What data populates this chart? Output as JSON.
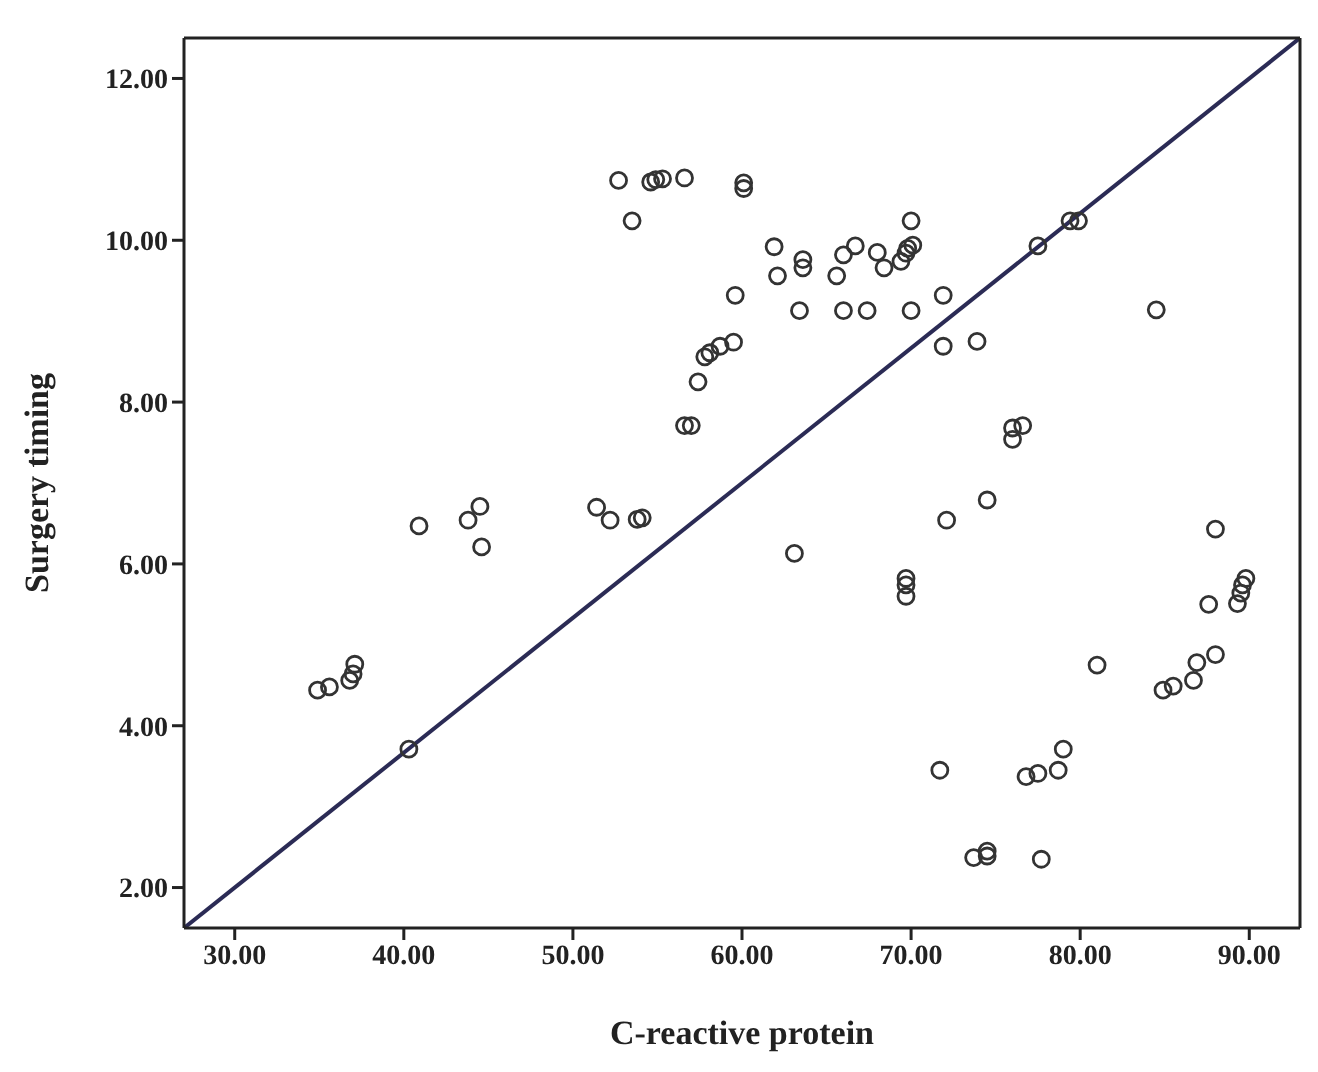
{
  "chart_data": {
    "type": "scatter",
    "xlabel": "C-reactive protein",
    "ylabel": "Surgery timing",
    "xlim": [
      27,
      93
    ],
    "ylim": [
      1.5,
      12.5
    ],
    "xticks": [
      {
        "value": 30,
        "label": "30.00"
      },
      {
        "value": 40,
        "label": "40.00"
      },
      {
        "value": 50,
        "label": "50.00"
      },
      {
        "value": 60,
        "label": "60.00"
      },
      {
        "value": 70,
        "label": "70.00"
      },
      {
        "value": 80,
        "label": "80.00"
      },
      {
        "value": 90,
        "label": "90.00"
      }
    ],
    "yticks": [
      {
        "value": 2,
        "label": "2.00"
      },
      {
        "value": 4,
        "label": "4.00"
      },
      {
        "value": 6,
        "label": "6.00"
      },
      {
        "value": 8,
        "label": "8.00"
      },
      {
        "value": 10,
        "label": "10.00"
      },
      {
        "value": 12,
        "label": "12.00"
      }
    ],
    "marker": "circle",
    "series": [
      {
        "color": "#333333",
        "x": [
          52.7,
          54.6,
          54.9,
          55.3,
          56.6,
          53.5,
          59.6,
          57.8,
          58.1,
          58.7,
          59.5,
          57.4,
          56.6,
          57.0,
          40.9,
          43.8,
          44.5,
          44.6,
          51.4,
          52.2,
          53.8,
          54.1,
          60.1,
          60.1,
          70.0,
          61.9,
          63.6,
          63.6,
          62.1,
          66.0,
          66.7,
          68.0,
          68.4,
          65.6,
          69.4,
          69.7,
          69.8,
          70.1,
          63.4,
          66.0,
          67.4,
          70.0,
          71.9,
          71.9,
          73.9,
          76.0,
          76.6,
          76.0,
          74.5,
          72.1,
          88.0,
          84.5,
          77.5,
          79.4,
          79.9,
          63.1,
          69.7,
          69.7,
          69.7,
          89.8,
          89.6,
          89.5,
          89.3,
          87.6,
          88.0,
          86.9,
          86.7,
          85.5,
          84.9,
          81.0,
          79.0,
          78.7,
          77.5,
          76.8,
          71.7,
          77.7,
          74.5,
          74.5,
          73.7,
          34.9,
          35.6,
          36.8,
          37.0,
          37.1,
          40.3
        ],
        "values": [
          10.74,
          10.72,
          10.75,
          10.76,
          10.77,
          10.24,
          9.32,
          8.56,
          8.61,
          8.69,
          8.74,
          8.25,
          7.71,
          7.71,
          6.47,
          6.54,
          6.71,
          6.21,
          6.7,
          6.54,
          6.55,
          6.57,
          10.71,
          10.64,
          10.24,
          9.92,
          9.76,
          9.66,
          9.56,
          9.82,
          9.93,
          9.85,
          9.66,
          9.56,
          9.74,
          9.84,
          9.9,
          9.94,
          9.13,
          9.13,
          9.13,
          9.13,
          9.32,
          8.69,
          8.75,
          7.68,
          7.71,
          7.54,
          6.79,
          6.54,
          6.43,
          9.14,
          9.93,
          10.24,
          10.24,
          6.13,
          5.82,
          5.74,
          5.6,
          5.82,
          5.74,
          5.64,
          5.51,
          5.5,
          4.88,
          4.78,
          4.56,
          4.49,
          4.44,
          4.75,
          3.71,
          3.45,
          3.41,
          3.37,
          3.45,
          2.35,
          2.45,
          2.39,
          2.37,
          4.44,
          4.48,
          4.56,
          4.64,
          4.76,
          3.71
        ]
      },
      {
        "type": "line",
        "color": "#2b2b55",
        "marker": "none",
        "line_style": "solid",
        "x": [
          27,
          93
        ],
        "values": [
          1.5,
          12.5
        ]
      }
    ]
  }
}
